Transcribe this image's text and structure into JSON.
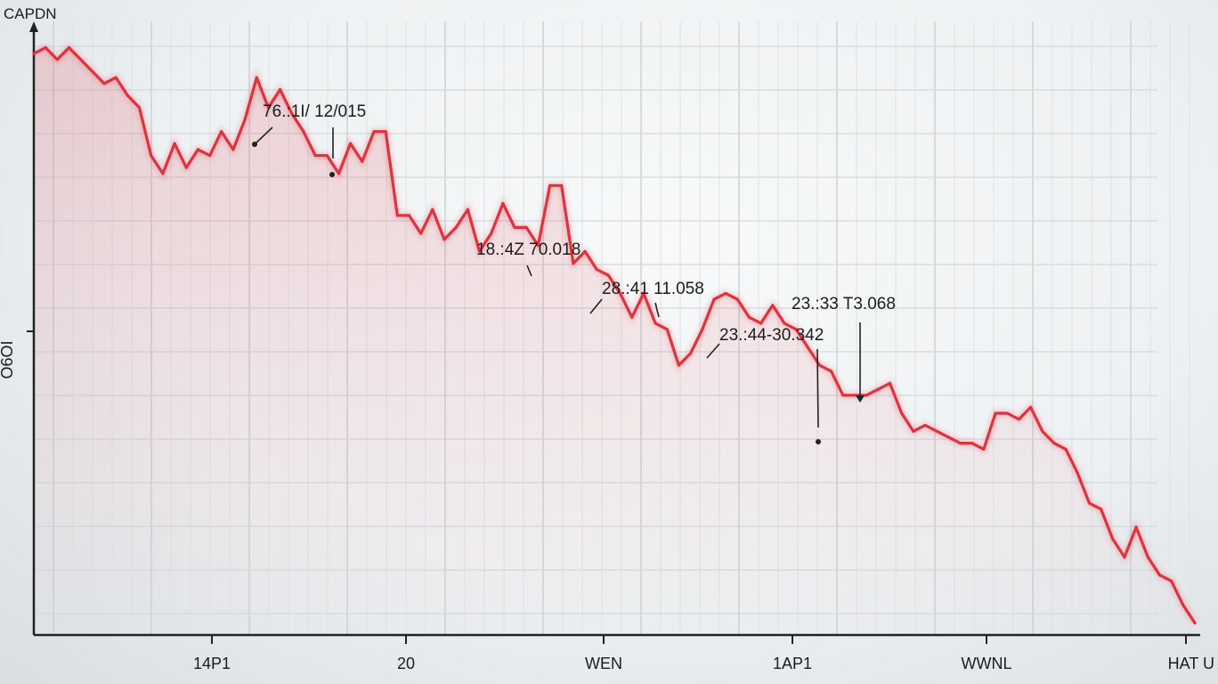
{
  "chart_data": {
    "type": "line",
    "title": "CAPDN",
    "ylabel": "O6OI",
    "x_tick_labels": [
      "14P1",
      "20",
      "WEN",
      "1AP1",
      "WWNL",
      "HAT U"
    ],
    "line_color": "#e0323e",
    "grid": true,
    "ylim": [
      0,
      100
    ],
    "series": [
      {
        "values": [
          97,
          98,
          96,
          98,
          96,
          94,
          92,
          93,
          90,
          88,
          80,
          77,
          82,
          78,
          81,
          80,
          84,
          81,
          86,
          93,
          88,
          91,
          87,
          84,
          80,
          80,
          77,
          82,
          79,
          84,
          84,
          70,
          70,
          67,
          71,
          66,
          68,
          71,
          64,
          67,
          72,
          68,
          68,
          65,
          75,
          75,
          62,
          64,
          61,
          60,
          57,
          53,
          57,
          52,
          51,
          45,
          47,
          51,
          56,
          57,
          56,
          53,
          52,
          55,
          52,
          51,
          48,
          45,
          44,
          40,
          40,
          40,
          41,
          42,
          37,
          34,
          35,
          34,
          33,
          32,
          32,
          31,
          37,
          37,
          36,
          38,
          34,
          32,
          31,
          27,
          22,
          21,
          16,
          13,
          18,
          13,
          10,
          9,
          5,
          2
        ]
      }
    ],
    "annotations": [
      {
        "label": "76.:1I/ 12/015"
      },
      {
        "label": "18.:4Z 70.018"
      },
      {
        "label": "28.:41 11.058"
      },
      {
        "label": "23.:33 T3.068"
      },
      {
        "label": "23.:44-30.342"
      }
    ]
  }
}
